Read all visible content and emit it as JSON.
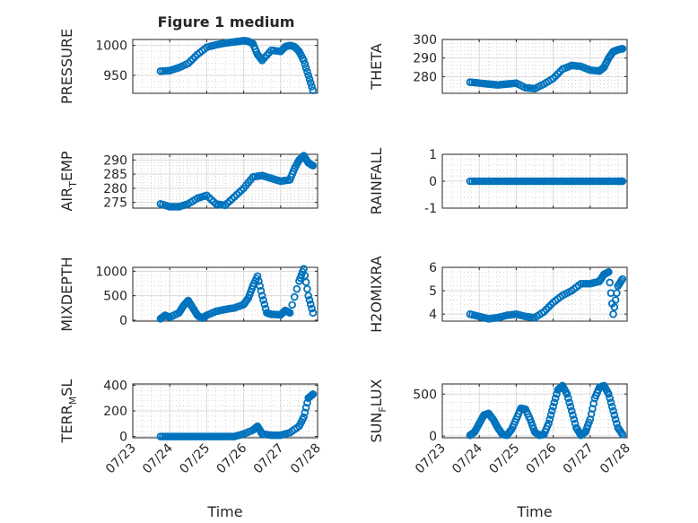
{
  "title": "Figure 1 medium",
  "xlabel": "Time",
  "x_tick_labels": [
    "07/23",
    "07/24",
    "07/25",
    "07/26",
    "07/27",
    "07/28"
  ],
  "marker_color": "#0072BD",
  "chart_data": [
    {
      "type": "scatter",
      "ylabel": "PRESSURE",
      "ylim": [
        920,
        1010
      ],
      "yticks": [
        950,
        1000
      ],
      "grid": true,
      "x": [
        "07/23 18:00",
        "07/24 00:00",
        "07/24 06:00",
        "07/24 12:00",
        "07/24 18:00",
        "07/25 00:00",
        "07/25 06:00",
        "07/25 12:00",
        "07/25 18:00",
        "07/26 00:00",
        "07/26 03:00",
        "07/26 06:00",
        "07/26 09:00",
        "07/26 12:00",
        "07/26 18:00",
        "07/27 00:00",
        "07/27 03:00",
        "07/27 06:00",
        "07/27 09:00",
        "07/27 12:00",
        "07/27 15:00",
        "07/27 18:00",
        "07/27 21:00"
      ],
      "y": [
        957,
        958,
        963,
        970,
        985,
        997,
        1001,
        1004,
        1006,
        1008,
        1007,
        1003,
        985,
        975,
        992,
        990,
        998,
        1000,
        998,
        990,
        975,
        950,
        925
      ]
    },
    {
      "type": "scatter",
      "ylabel": "THETA",
      "ylim": [
        271,
        300
      ],
      "yticks": [
        280,
        290,
        300
      ],
      "grid": true,
      "x": [
        "07/23 18:00",
        "07/24 00:00",
        "07/24 06:00",
        "07/24 12:00",
        "07/24 18:00",
        "07/25 00:00",
        "07/25 06:00",
        "07/25 12:00",
        "07/25 18:00",
        "07/26 00:00",
        "07/26 06:00",
        "07/26 12:00",
        "07/26 18:00",
        "07/27 00:00",
        "07/27 06:00",
        "07/27 09:00",
        "07/27 12:00",
        "07/27 15:00",
        "07/27 18:00",
        "07/27 21:00"
      ],
      "y": [
        277,
        276.5,
        276,
        275.5,
        276,
        276.5,
        274,
        273.5,
        276,
        279,
        284,
        286,
        285.5,
        283.5,
        283,
        285,
        290,
        293.5,
        294.5,
        295
      ]
    },
    {
      "type": "scatter",
      "ylabel": "AIR_TEMP",
      "ylim": [
        273,
        292
      ],
      "yticks": [
        275,
        280,
        285,
        290
      ],
      "grid": true,
      "x": [
        "07/23 18:00",
        "07/24 00:00",
        "07/24 06:00",
        "07/24 12:00",
        "07/24 18:00",
        "07/25 00:00",
        "07/25 06:00",
        "07/25 12:00",
        "07/25 18:00",
        "07/26 00:00",
        "07/26 06:00",
        "07/26 12:00",
        "07/26 18:00",
        "07/27 00:00",
        "07/27 06:00",
        "07/27 09:00",
        "07/27 12:00",
        "07/27 15:00",
        "07/27 18:00",
        "07/27 21:00"
      ],
      "y": [
        274.5,
        273.5,
        273.5,
        274.5,
        276.5,
        277.5,
        274.5,
        274,
        277,
        280,
        284,
        284.5,
        283.5,
        282.5,
        283,
        287,
        290,
        291.5,
        289,
        288
      ]
    },
    {
      "type": "scatter",
      "ylabel": "RAINFALL",
      "ylim": [
        -1,
        1
      ],
      "yticks": [
        -1,
        0,
        1
      ],
      "grid": true,
      "x": [
        "07/23 18:00",
        "07/24 00:00",
        "07/24 06:00",
        "07/24 12:00",
        "07/24 18:00",
        "07/25 00:00",
        "07/25 06:00",
        "07/25 12:00",
        "07/25 18:00",
        "07/26 00:00",
        "07/26 06:00",
        "07/26 12:00",
        "07/26 18:00",
        "07/27 00:00",
        "07/27 06:00",
        "07/27 12:00",
        "07/27 18:00",
        "07/27 21:00"
      ],
      "y": [
        0,
        0,
        0,
        0,
        0,
        0,
        0,
        0,
        0,
        0,
        0,
        0,
        0,
        0,
        0,
        0,
        0,
        0
      ]
    },
    {
      "type": "scatter",
      "ylabel": "MIXDEPTH",
      "ylim": [
        -20,
        1080
      ],
      "yticks": [
        0,
        500,
        1000
      ],
      "grid": true,
      "x": [
        "07/23 18:00",
        "07/23 21:00",
        "07/24 00:00",
        "07/24 06:00",
        "07/24 09:00",
        "07/24 12:00",
        "07/24 15:00",
        "07/24 18:00",
        "07/24 21:00",
        "07/25 00:00",
        "07/25 06:00",
        "07/25 12:00",
        "07/25 18:00",
        "07/26 00:00",
        "07/26 03:00",
        "07/26 06:00",
        "07/26 09:00",
        "07/26 12:00",
        "07/26 15:00",
        "07/26 18:00",
        "07/27 00:00",
        "07/27 03:00",
        "07/27 06:00",
        "07/27 12:00",
        "07/27 15:00",
        "07/27 18:00",
        "07/27 21:00"
      ],
      "y": [
        30,
        100,
        60,
        150,
        300,
        400,
        250,
        100,
        40,
        100,
        180,
        220,
        250,
        320,
        450,
        700,
        900,
        500,
        150,
        120,
        110,
        200,
        150,
        800,
        1050,
        500,
        150
      ]
    },
    {
      "type": "scatter",
      "ylabel": "H2OMIXRA",
      "ylim": [
        3.7,
        6
      ],
      "yticks": [
        4,
        5,
        6
      ],
      "grid": true,
      "x": [
        "07/23 18:00",
        "07/24 00:00",
        "07/24 06:00",
        "07/24 12:00",
        "07/24 18:00",
        "07/25 00:00",
        "07/25 06:00",
        "07/25 12:00",
        "07/25 18:00",
        "07/26 00:00",
        "07/26 06:00",
        "07/26 12:00",
        "07/26 18:00",
        "07/27 00:00",
        "07/27 06:00",
        "07/27 09:00",
        "07/27 12:00",
        "07/27 15:00",
        "07/27 18:00",
        "07/27 21:00"
      ],
      "y": [
        4.0,
        3.9,
        3.8,
        3.85,
        3.95,
        4.0,
        3.9,
        3.85,
        4.1,
        4.5,
        4.8,
        5.0,
        5.3,
        5.3,
        5.4,
        5.7,
        5.8,
        4.0,
        5.2,
        5.5
      ]
    },
    {
      "type": "scatter",
      "ylabel": "TERR_MSL",
      "ylim": [
        -10,
        410
      ],
      "yticks": [
        0,
        200,
        400
      ],
      "grid": true,
      "x": [
        "07/23 18:00",
        "07/24 00:00",
        "07/24 06:00",
        "07/24 12:00",
        "07/24 18:00",
        "07/25 00:00",
        "07/25 06:00",
        "07/25 12:00",
        "07/25 18:00",
        "07/26 00:00",
        "07/26 06:00",
        "07/26 09:00",
        "07/26 12:00",
        "07/26 18:00",
        "07/27 00:00",
        "07/27 06:00",
        "07/27 12:00",
        "07/27 15:00",
        "07/27 18:00",
        "07/27 21:00"
      ],
      "y": [
        0,
        0,
        0,
        0,
        0,
        0,
        0,
        0,
        0,
        20,
        50,
        80,
        20,
        10,
        10,
        30,
        80,
        150,
        300,
        330
      ]
    },
    {
      "type": "scatter",
      "ylabel": "SUN_FLUX",
      "ylim": [
        -20,
        620
      ],
      "yticks": [
        0,
        500
      ],
      "grid": true,
      "x": [
        "07/23 18:00",
        "07/23 21:00",
        "07/24 00:00",
        "07/24 03:00",
        "07/24 06:00",
        "07/24 09:00",
        "07/24 12:00",
        "07/24 15:00",
        "07/24 18:00",
        "07/24 21:00",
        "07/25 00:00",
        "07/25 03:00",
        "07/25 06:00",
        "07/25 09:00",
        "07/25 12:00",
        "07/25 15:00",
        "07/25 18:00",
        "07/25 21:00",
        "07/26 00:00",
        "07/26 03:00",
        "07/26 06:00",
        "07/26 09:00",
        "07/26 12:00",
        "07/26 15:00",
        "07/26 18:00",
        "07/26 21:00",
        "07/27 00:00",
        "07/27 03:00",
        "07/27 06:00",
        "07/27 09:00",
        "07/27 12:00",
        "07/27 15:00",
        "07/27 18:00",
        "07/27 21:00"
      ],
      "y": [
        10,
        50,
        150,
        250,
        270,
        200,
        100,
        20,
        10,
        80,
        200,
        330,
        320,
        200,
        50,
        10,
        20,
        150,
        350,
        550,
        600,
        500,
        300,
        100,
        10,
        50,
        200,
        450,
        580,
        600,
        500,
        300,
        100,
        20
      ]
    }
  ]
}
